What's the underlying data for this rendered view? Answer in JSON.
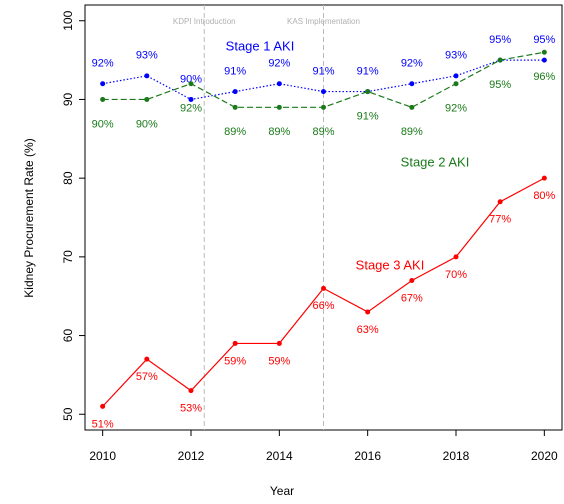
{
  "chart_data": {
    "type": "line",
    "x": [
      2010,
      2011,
      2012,
      2013,
      2014,
      2015,
      2016,
      2017,
      2018,
      2019,
      2020
    ],
    "xlabel": "Year",
    "ylabel": "Kidney Procurement Rate (%)",
    "xlim": [
      2009.6,
      2020.4
    ],
    "ylim": [
      48,
      102
    ],
    "xticks": [
      2010,
      2012,
      2014,
      2016,
      2018,
      2020
    ],
    "yticks": [
      50,
      60,
      70,
      80,
      90,
      100
    ],
    "series": [
      {
        "name": "Stage 1 AKI",
        "color": "#0000ff",
        "linestyle": "dotted",
        "values": [
          92,
          93,
          90,
          91,
          92,
          91,
          91,
          92,
          93,
          95,
          95
        ],
        "value_labels": [
          "92%",
          "93%",
          "90%",
          "91%",
          "92%",
          "91%",
          "91%",
          "92%",
          "93%",
          "95%",
          "95%"
        ]
      },
      {
        "name": "Stage 2 AKI",
        "color": "#1a7a1a",
        "linestyle": "dashed",
        "values": [
          90,
          90,
          92,
          89,
          89,
          89,
          91,
          89,
          92,
          95,
          96
        ],
        "value_labels": [
          "90%",
          "90%",
          "92%",
          "89%",
          "89%",
          "89%",
          "91%",
          "89%",
          "92%",
          "95%",
          "96%"
        ]
      },
      {
        "name": "Stage 3 AKI",
        "color": "#ff0000",
        "linestyle": "solid",
        "values": [
          51,
          57,
          53,
          59,
          59,
          66,
          63,
          67,
          70,
          77,
          80
        ],
        "value_labels": [
          "51%",
          "57%",
          "53%",
          "59%",
          "59%",
          "66%",
          "63%",
          "67%",
          "70%",
          "77%",
          "80%"
        ]
      }
    ],
    "annotations": [
      {
        "text": "KDPI Introduction",
        "x": 2012.3
      },
      {
        "text": "KAS Implementation",
        "x": 2015
      }
    ]
  }
}
